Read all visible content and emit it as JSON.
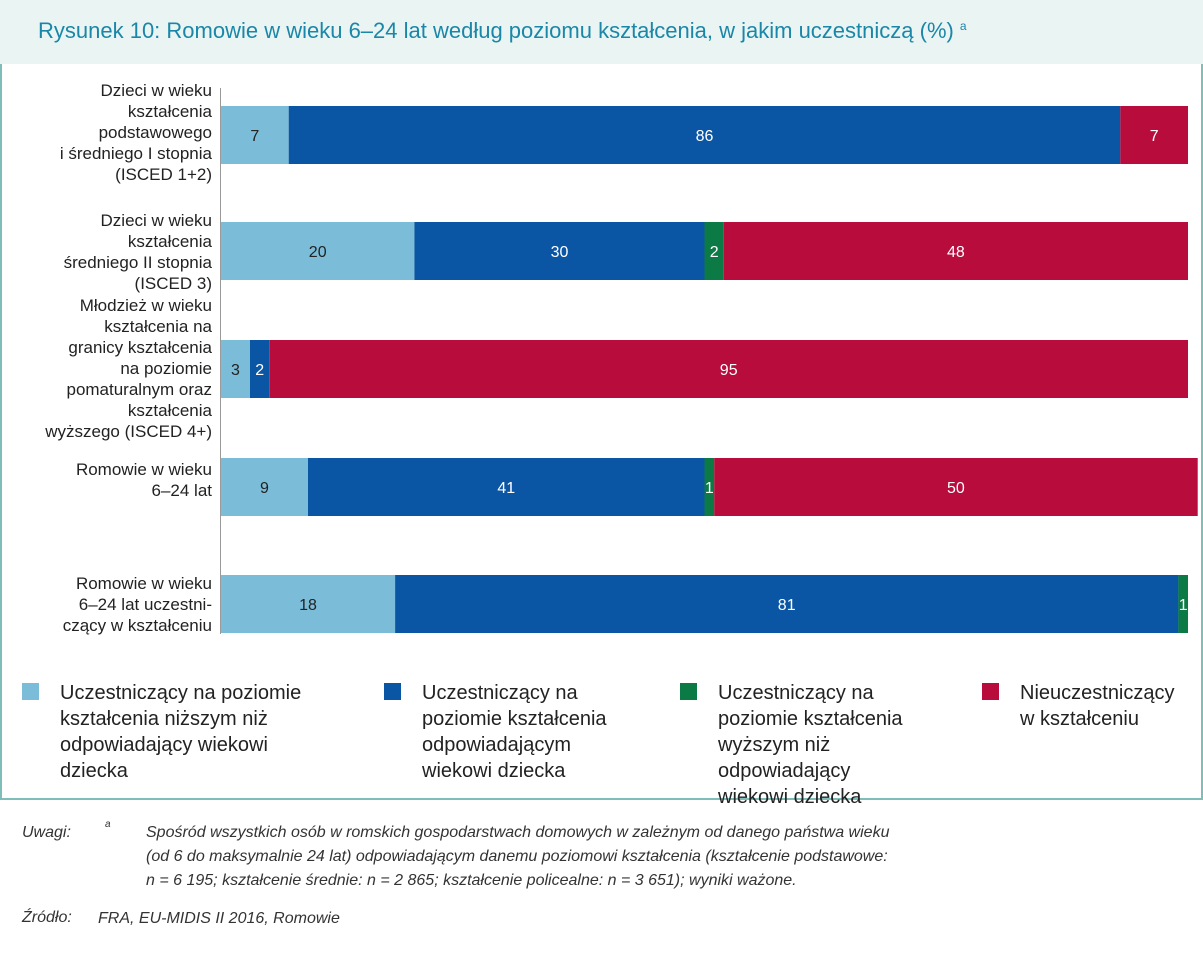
{
  "figure": {
    "title": "Rysunek 10:  Romowie w wieku 6–24 lat według poziomu kształcenia, w jakim uczestniczą (%)",
    "title_note_mark": "a"
  },
  "chart_data": {
    "type": "bar",
    "orientation": "horizontal",
    "stacked": true,
    "categories": [
      "Dzieci w wieku kształcenia podstawowego i średniego I stopnia (ISCED 1+2)",
      "Dzieci w wieku kształcenia średniego II stopnia (ISCED 3)",
      "Młodzież w wieku kształcenia na granicy kształcenia na poziomie pomaturalnym oraz kształcenia wyższego (ISCED 4+)",
      "Romowie w wieku 6–24 lat",
      "Romowie w wieku 6–24 lat uczestni- czący w kształceniu"
    ],
    "category_lines": [
      [
        "Dzieci w wieku",
        "kształcenia",
        "podstawowego",
        "i średniego I stopnia",
        "(ISCED 1+2)"
      ],
      [
        "Dzieci w wieku",
        "kształcenia",
        "średniego II stopnia",
        "(ISCED 3)"
      ],
      [
        "Młodzież w wieku",
        "kształcenia na",
        "granicy kształcenia",
        "na poziomie",
        "pomaturalnym oraz",
        "kształcenia",
        "wyższego (ISCED 4+)"
      ],
      [
        "Romowie w wieku",
        "6–24 lat"
      ],
      [
        "Romowie w wieku",
        "6–24 lat uczestni-",
        "czący w kształceniu"
      ]
    ],
    "series": [
      {
        "name": "Uczestniczący na poziomie kształcenia niższym niż odpowiadający wiekowi dziecka",
        "color": "#7bbcd8",
        "values": [
          7,
          20,
          3,
          9,
          18
        ]
      },
      {
        "name": "Uczestniczący na poziomie kształcenia odpowiadającym wiekowi dziecka",
        "color": "#0b56a4",
        "values": [
          86,
          30,
          2,
          41,
          81
        ]
      },
      {
        "name": "Uczestniczący na poziomie kształcenia wyższym niż odpowiadający wiekowi dziecka",
        "color": "#0b7a45",
        "values": [
          0,
          2,
          0,
          1,
          1
        ]
      },
      {
        "name": "Nieuczestniczący w kształceniu",
        "color": "#b70c3c",
        "values": [
          7,
          48,
          95,
          50,
          0
        ]
      }
    ],
    "data_labels_shown": [
      [
        true,
        true,
        false,
        true
      ],
      [
        true,
        true,
        true,
        true
      ],
      [
        true,
        true,
        false,
        true
      ],
      [
        true,
        true,
        true,
        true
      ],
      [
        true,
        true,
        true,
        false
      ]
    ],
    "xlim": [
      0,
      100
    ],
    "xlabel": "",
    "ylabel": "",
    "grid": false,
    "legend_position": "bottom"
  },
  "legend": [
    {
      "lines": [
        "Uczestniczący na poziomie",
        "kształcenia niższym niż",
        "odpowiadający wiekowi",
        "dziecka"
      ]
    },
    {
      "lines": [
        "Uczestniczący na",
        "poziomie kształcenia",
        "odpowiadającym",
        "wiekowi dziecka"
      ]
    },
    {
      "lines": [
        "Uczestniczący na",
        "poziomie kształcenia",
        "wyższym niż",
        "odpowiadający",
        "wiekowi dziecka"
      ]
    },
    {
      "lines": [
        "Nieuczestniczący",
        "w kształceniu"
      ]
    }
  ],
  "notes": {
    "label": "Uwagi:",
    "mark": "a",
    "lines": [
      "Spośród wszystkich osób w romskich gospodarstwach domowych w zależnym od danego państwa wieku",
      "(od 6 do maksymalnie 24 lat) odpowiadającym danemu poziomowi kształcenia (kształcenie podstawowe:",
      "n = 6 195; kształcenie średnie: n = 2 865; kształcenie policealne: n = 3 651); wyniki ważone."
    ]
  },
  "source": {
    "label": "Źródło:",
    "text": "FRA, EU-MIDIS II 2016, Romowie"
  }
}
